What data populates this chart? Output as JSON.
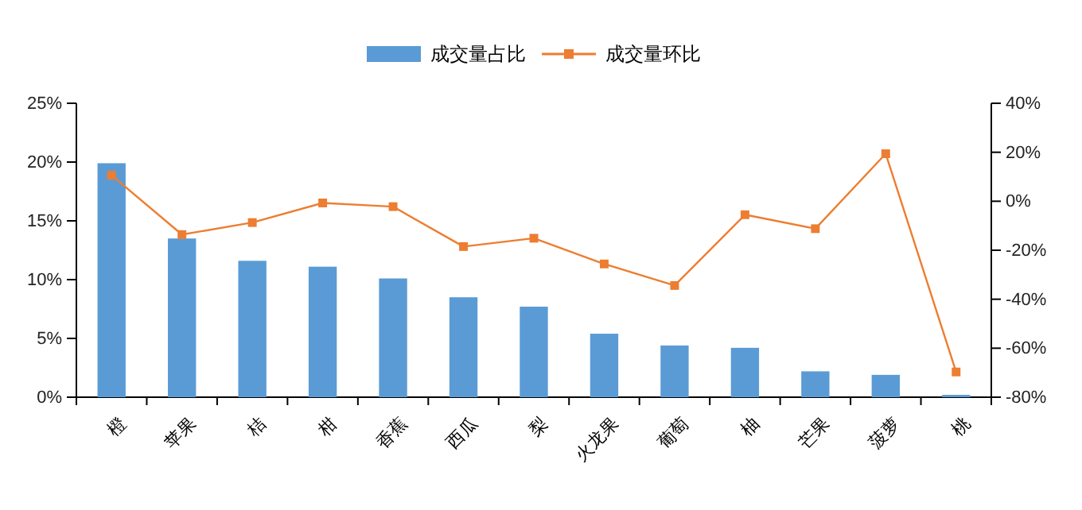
{
  "chart_data": {
    "type": "bar",
    "categories": [
      "橙",
      "苹果",
      "桔",
      "柑",
      "香蕉",
      "西瓜",
      "梨",
      "火龙果",
      "葡萄",
      "柚",
      "芒果",
      "菠萝",
      "桃"
    ],
    "series": [
      {
        "name": "成交量占比",
        "color": "#5b9bd5",
        "values": [
          19.9,
          13.5,
          11.6,
          11.1,
          10.1,
          8.5,
          7.7,
          5.4,
          4.4,
          4.2,
          2.2,
          1.9,
          0.2
        ]
      },
      {
        "name": "成交量环比",
        "type": "line",
        "axis": "y2",
        "color": "#ed7d31",
        "marker": "square",
        "values": [
          10.6,
          -13.6,
          -8.7,
          -0.7,
          -2.2,
          -18.5,
          -15.1,
          -25.6,
          -34.4,
          -5.5,
          -11.2,
          19.4,
          -69.7
        ]
      }
    ],
    "ylim": [
      0,
      25
    ],
    "yticks": [
      {
        "value": 0,
        "label": "0%"
      },
      {
        "value": 5,
        "label": "5%"
      },
      {
        "value": 10,
        "label": "10%"
      },
      {
        "value": 15,
        "label": "15%"
      },
      {
        "value": 20,
        "label": "20%"
      },
      {
        "value": 25,
        "label": "25%"
      }
    ],
    "y2lim": [
      -80,
      40
    ],
    "y2ticks": [
      {
        "value": -80,
        "label": "-80%"
      },
      {
        "value": -60,
        "label": "-60%"
      },
      {
        "value": -40,
        "label": "-40%"
      },
      {
        "value": -20,
        "label": "-20%"
      },
      {
        "value": 0,
        "label": "0%"
      },
      {
        "value": 20,
        "label": "20%"
      },
      {
        "value": 40,
        "label": "40%"
      }
    ],
    "legend": "top",
    "grid": false
  }
}
